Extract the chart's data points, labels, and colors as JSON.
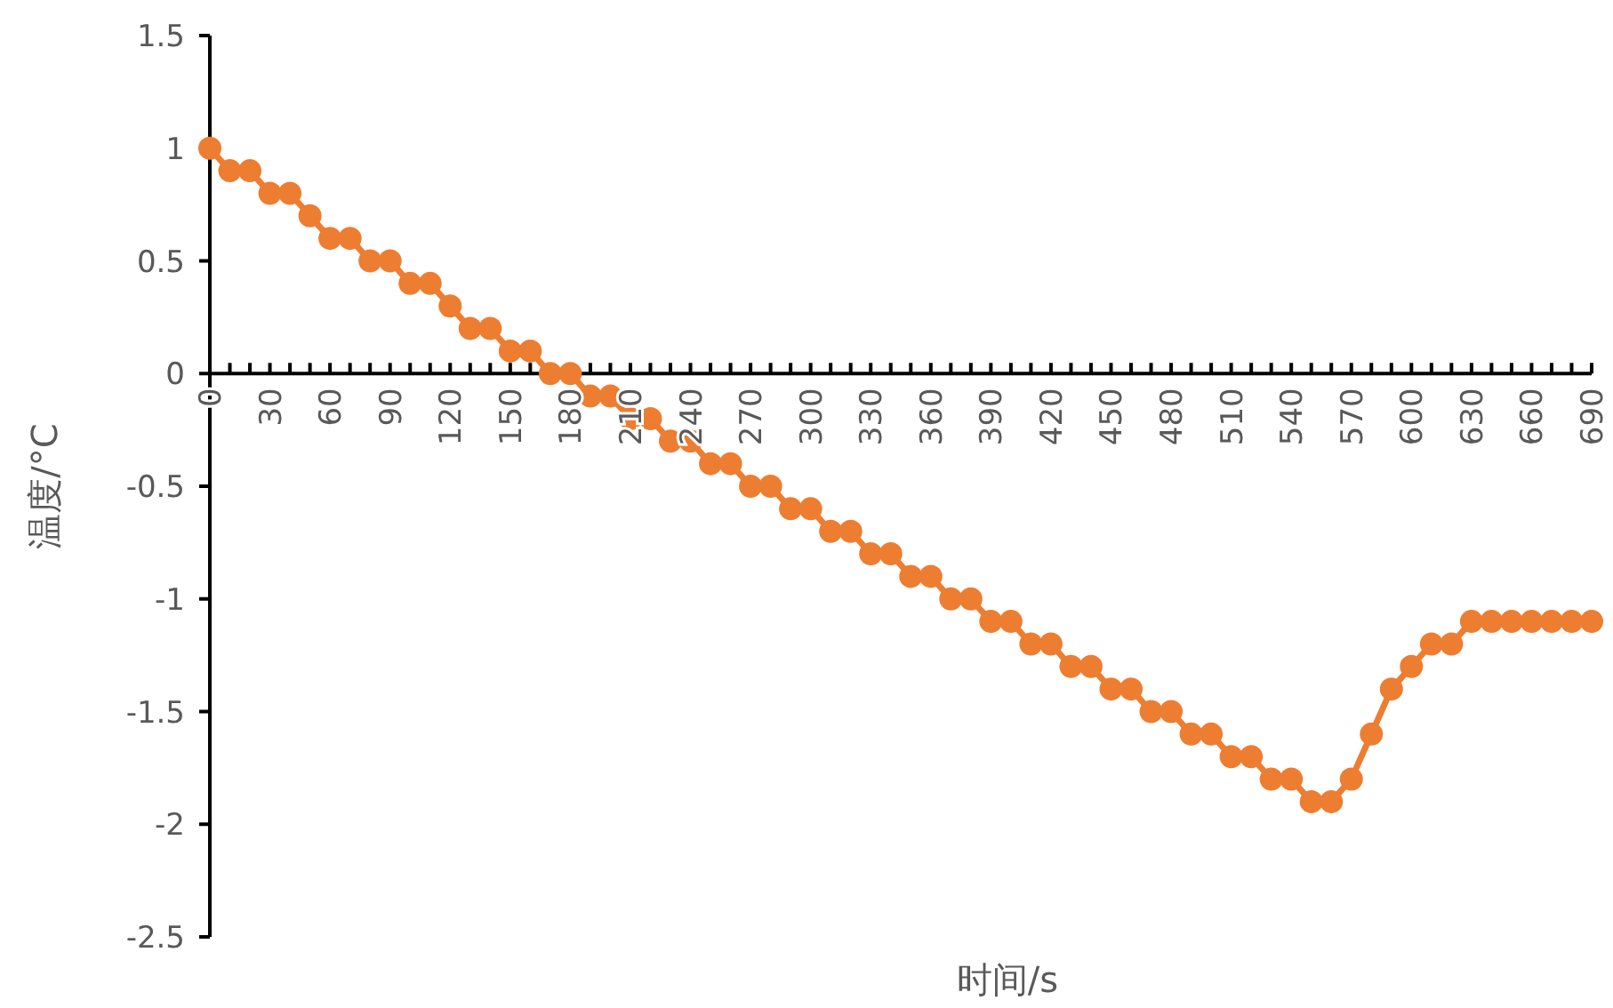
{
  "chart_data": {
    "type": "line",
    "xlabel": "时间/s",
    "ylabel": "温度/°C",
    "x": [
      0,
      10,
      20,
      30,
      40,
      50,
      60,
      70,
      80,
      90,
      100,
      110,
      120,
      130,
      140,
      150,
      160,
      170,
      180,
      190,
      200,
      210,
      220,
      230,
      240,
      250,
      260,
      270,
      280,
      290,
      300,
      310,
      320,
      330,
      340,
      350,
      360,
      370,
      380,
      390,
      400,
      410,
      420,
      430,
      440,
      450,
      460,
      470,
      480,
      490,
      500,
      510,
      520,
      530,
      540,
      550,
      560,
      570,
      580,
      590,
      600,
      610,
      620,
      630,
      640,
      650,
      660,
      670,
      680,
      690
    ],
    "series": [
      {
        "color": "#ed7d31",
        "values": [
          1,
          0.9,
          0.9,
          0.8,
          0.8,
          0.7,
          0.6,
          0.6,
          0.5,
          0.5,
          0.4,
          0.4,
          0.3,
          0.2,
          0.2,
          0.1,
          0.1,
          0,
          0,
          -0.1,
          -0.1,
          -0.2,
          -0.2,
          -0.3,
          -0.3,
          -0.4,
          -0.4,
          -0.5,
          -0.5,
          -0.6,
          -0.6,
          -0.7,
          -0.7,
          -0.8,
          -0.8,
          -0.9,
          -0.9,
          -1,
          -1,
          -1.1,
          -1.1,
          -1.2,
          -1.2,
          -1.3,
          -1.3,
          -1.4,
          -1.4,
          -1.5,
          -1.5,
          -1.6,
          -1.6,
          -1.7,
          -1.7,
          -1.8,
          -1.8,
          -1.9,
          -1.9,
          -1.8,
          -1.6,
          -1.4,
          -1.3,
          -1.2,
          -1.2,
          -1.1,
          -1.1,
          -1.1,
          -1.1,
          -1.1,
          -1.1,
          -1.1
        ]
      }
    ],
    "xlim": [
      0,
      690
    ],
    "xticks": [
      0,
      {
        "value": 10,
        "label": null
      },
      {
        "value": 20,
        "label": null
      },
      30,
      {
        "value": 40,
        "label": null
      },
      {
        "value": 50,
        "label": null
      },
      60,
      {
        "value": 70,
        "label": null
      },
      {
        "value": 80,
        "label": null
      },
      90,
      {
        "value": 100,
        "label": null
      },
      {
        "value": 110,
        "label": null
      },
      120,
      {
        "value": 130,
        "label": null
      },
      {
        "value": 140,
        "label": null
      },
      150,
      {
        "value": 160,
        "label": null
      },
      {
        "value": 170,
        "label": null
      },
      180,
      {
        "value": 190,
        "label": null
      },
      {
        "value": 200,
        "label": null
      },
      210,
      {
        "value": 220,
        "label": null
      },
      {
        "value": 230,
        "label": null
      },
      240,
      {
        "value": 250,
        "label": null
      },
      {
        "value": 260,
        "label": null
      },
      270,
      {
        "value": 280,
        "label": null
      },
      {
        "value": 290,
        "label": null
      },
      300,
      {
        "value": 310,
        "label": null
      },
      {
        "value": 320,
        "label": null
      },
      330,
      {
        "value": 340,
        "label": null
      },
      {
        "value": 350,
        "label": null
      },
      360,
      {
        "value": 370,
        "label": null
      },
      {
        "value": 380,
        "label": null
      },
      390,
      {
        "value": 400,
        "label": null
      },
      {
        "value": 410,
        "label": null
      },
      420,
      {
        "value": 430,
        "label": null
      },
      {
        "value": 440,
        "label": null
      },
      450,
      {
        "value": 460,
        "label": null
      },
      {
        "value": 470,
        "label": null
      },
      480,
      {
        "value": 490,
        "label": null
      },
      {
        "value": 500,
        "label": null
      },
      510,
      {
        "value": 520,
        "label": null
      },
      {
        "value": 530,
        "label": null
      },
      540,
      {
        "value": 550,
        "label": null
      },
      {
        "value": 560,
        "label": null
      },
      570,
      {
        "value": 580,
        "label": null
      },
      {
        "value": 590,
        "label": null
      },
      600,
      {
        "value": 610,
        "label": null
      },
      {
        "value": 620,
        "label": null
      },
      630,
      {
        "value": 640,
        "label": null
      },
      {
        "value": 650,
        "label": null
      },
      660,
      {
        "value": 670,
        "label": null
      },
      {
        "value": 680,
        "label": null
      },
      690
    ],
    "ylim": [
      -2.5,
      1.5
    ],
    "yticks": [
      -2.5,
      -2,
      -1.5,
      -1,
      -0.5,
      0,
      0.5,
      1,
      1.5
    ],
    "grid": false,
    "marker": "circle",
    "line_style": "solid"
  }
}
